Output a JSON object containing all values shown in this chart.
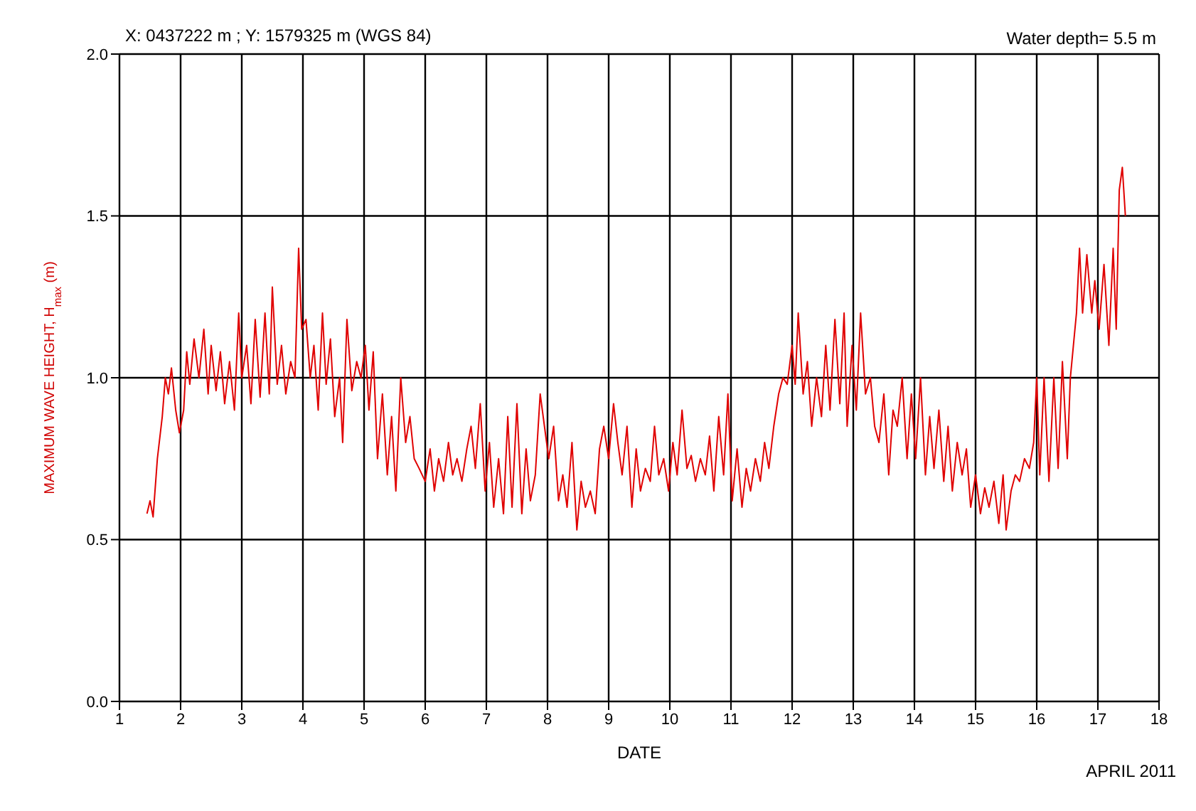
{
  "chart_data": {
    "type": "line",
    "title": "X: 0437222 m ; Y: 1579325 m (WGS 84)",
    "xlabel": "DATE",
    "ylabel": "MAXIMUM WAVE HEIGHT, H$_{max}$ (m)",
    "annotations": [
      "Water depth= 5.5 m",
      "APRIL 2011"
    ],
    "xlim": [
      1,
      18
    ],
    "xticks": [
      1,
      2,
      3,
      4,
      5,
      6,
      7,
      8,
      9,
      10,
      11,
      12,
      13,
      14,
      15,
      16,
      17,
      18
    ],
    "ylim": [
      0,
      2
    ],
    "yticks": [
      {
        "value": 0,
        "label": "0.0"
      },
      {
        "value": 0.5,
        "label": "0.5"
      },
      {
        "value": 1,
        "label": "1.0"
      },
      {
        "value": 1.5,
        "label": "1.5"
      },
      {
        "value": 2,
        "label": "2.0"
      }
    ],
    "grid": true,
    "line_style": "solid",
    "series": [
      {
        "color": "#e00000",
        "x": [
          1.45,
          1.5,
          1.55,
          1.62,
          1.7,
          1.75,
          1.8,
          1.85,
          1.92,
          1.98,
          2.05,
          2.1,
          2.15,
          2.22,
          2.3,
          2.38,
          2.45,
          2.5,
          2.58,
          2.65,
          2.72,
          2.8,
          2.88,
          2.95,
          3.0,
          3.08,
          3.15,
          3.22,
          3.3,
          3.38,
          3.45,
          3.5,
          3.58,
          3.65,
          3.72,
          3.8,
          3.87,
          3.93,
          3.98,
          4.05,
          4.12,
          4.18,
          4.25,
          4.32,
          4.38,
          4.45,
          4.52,
          4.6,
          4.65,
          4.72,
          4.8,
          4.88,
          4.95,
          5.02,
          5.08,
          5.15,
          5.22,
          5.3,
          5.38,
          5.45,
          5.52,
          5.6,
          5.68,
          5.75,
          5.82,
          5.9,
          6.0,
          6.08,
          6.15,
          6.22,
          6.3,
          6.38,
          6.45,
          6.52,
          6.6,
          6.68,
          6.75,
          6.82,
          6.9,
          6.98,
          7.05,
          7.12,
          7.2,
          7.28,
          7.35,
          7.42,
          7.5,
          7.58,
          7.65,
          7.72,
          7.8,
          7.88,
          7.95,
          8.02,
          8.1,
          8.18,
          8.25,
          8.32,
          8.4,
          8.48,
          8.55,
          8.62,
          8.7,
          8.78,
          8.85,
          8.92,
          9.0,
          9.08,
          9.15,
          9.22,
          9.3,
          9.38,
          9.45,
          9.52,
          9.6,
          9.68,
          9.75,
          9.82,
          9.9,
          9.98,
          10.05,
          10.12,
          10.2,
          10.28,
          10.35,
          10.42,
          10.5,
          10.58,
          10.65,
          10.72,
          10.8,
          10.88,
          10.95,
          11.02,
          11.1,
          11.18,
          11.25,
          11.32,
          11.4,
          11.48,
          11.55,
          11.62,
          11.7,
          11.78,
          11.85,
          11.92,
          12.0,
          12.05,
          12.1,
          12.18,
          12.25,
          12.32,
          12.4,
          12.48,
          12.55,
          12.62,
          12.7,
          12.78,
          12.85,
          12.9,
          12.98,
          13.05,
          13.12,
          13.2,
          13.28,
          13.35,
          13.42,
          13.5,
          13.58,
          13.65,
          13.72,
          13.8,
          13.88,
          13.95,
          14.02,
          14.1,
          14.18,
          14.25,
          14.32,
          14.4,
          14.48,
          14.55,
          14.62,
          14.7,
          14.78,
          14.85,
          14.92,
          15.0,
          15.08,
          15.15,
          15.22,
          15.3,
          15.38,
          15.45,
          15.5,
          15.58,
          15.65,
          15.72,
          15.8,
          15.88,
          15.95,
          16.0,
          16.05,
          16.12,
          16.2,
          16.28,
          16.35,
          16.42,
          16.5,
          16.55,
          16.6,
          16.65,
          16.7,
          16.75,
          16.82,
          16.9,
          16.95,
          17.02,
          17.1,
          17.18,
          17.25,
          17.3,
          17.35,
          17.4,
          17.45
        ],
        "values": [
          0.58,
          0.62,
          0.57,
          0.75,
          0.88,
          1.0,
          0.95,
          1.03,
          0.9,
          0.83,
          0.9,
          1.08,
          0.98,
          1.12,
          1.0,
          1.15,
          0.95,
          1.1,
          0.96,
          1.08,
          0.92,
          1.05,
          0.9,
          1.2,
          1.0,
          1.1,
          0.92,
          1.18,
          0.94,
          1.2,
          0.95,
          1.28,
          0.98,
          1.1,
          0.95,
          1.05,
          1.0,
          1.4,
          1.15,
          1.18,
          1.0,
          1.1,
          0.9,
          1.2,
          0.98,
          1.12,
          0.88,
          1.0,
          0.8,
          1.18,
          0.96,
          1.05,
          1.0,
          1.1,
          0.9,
          1.08,
          0.75,
          0.95,
          0.7,
          0.88,
          0.65,
          1.0,
          0.8,
          0.88,
          0.75,
          0.72,
          0.68,
          0.78,
          0.65,
          0.75,
          0.68,
          0.8,
          0.7,
          0.75,
          0.68,
          0.78,
          0.85,
          0.72,
          0.92,
          0.65,
          0.8,
          0.6,
          0.75,
          0.58,
          0.88,
          0.6,
          0.92,
          0.58,
          0.78,
          0.62,
          0.7,
          0.95,
          0.85,
          0.75,
          0.85,
          0.62,
          0.7,
          0.6,
          0.8,
          0.53,
          0.68,
          0.6,
          0.65,
          0.58,
          0.78,
          0.85,
          0.75,
          0.92,
          0.8,
          0.7,
          0.85,
          0.6,
          0.78,
          0.65,
          0.72,
          0.68,
          0.85,
          0.7,
          0.75,
          0.65,
          0.8,
          0.7,
          0.9,
          0.72,
          0.76,
          0.68,
          0.75,
          0.7,
          0.82,
          0.65,
          0.88,
          0.7,
          0.95,
          0.62,
          0.78,
          0.6,
          0.72,
          0.65,
          0.75,
          0.68,
          0.8,
          0.72,
          0.85,
          0.95,
          1.0,
          0.98,
          1.1,
          0.98,
          1.2,
          0.95,
          1.05,
          0.85,
          1.0,
          0.88,
          1.1,
          0.9,
          1.18,
          0.92,
          1.2,
          0.85,
          1.1,
          0.9,
          1.2,
          0.95,
          1.0,
          0.85,
          0.8,
          0.95,
          0.7,
          0.9,
          0.85,
          1.0,
          0.75,
          0.95,
          0.75,
          1.0,
          0.7,
          0.88,
          0.72,
          0.9,
          0.68,
          0.85,
          0.65,
          0.8,
          0.7,
          0.78,
          0.6,
          0.7,
          0.58,
          0.66,
          0.6,
          0.68,
          0.55,
          0.7,
          0.53,
          0.65,
          0.7,
          0.68,
          0.75,
          0.72,
          0.8,
          1.0,
          0.7,
          1.0,
          0.68,
          1.0,
          0.72,
          1.05,
          0.75,
          1.0,
          1.1,
          1.2,
          1.4,
          1.2,
          1.38,
          1.2,
          1.3,
          1.15,
          1.35,
          1.1,
          1.4,
          1.15,
          1.58,
          1.65,
          1.5
        ]
      }
    ]
  }
}
